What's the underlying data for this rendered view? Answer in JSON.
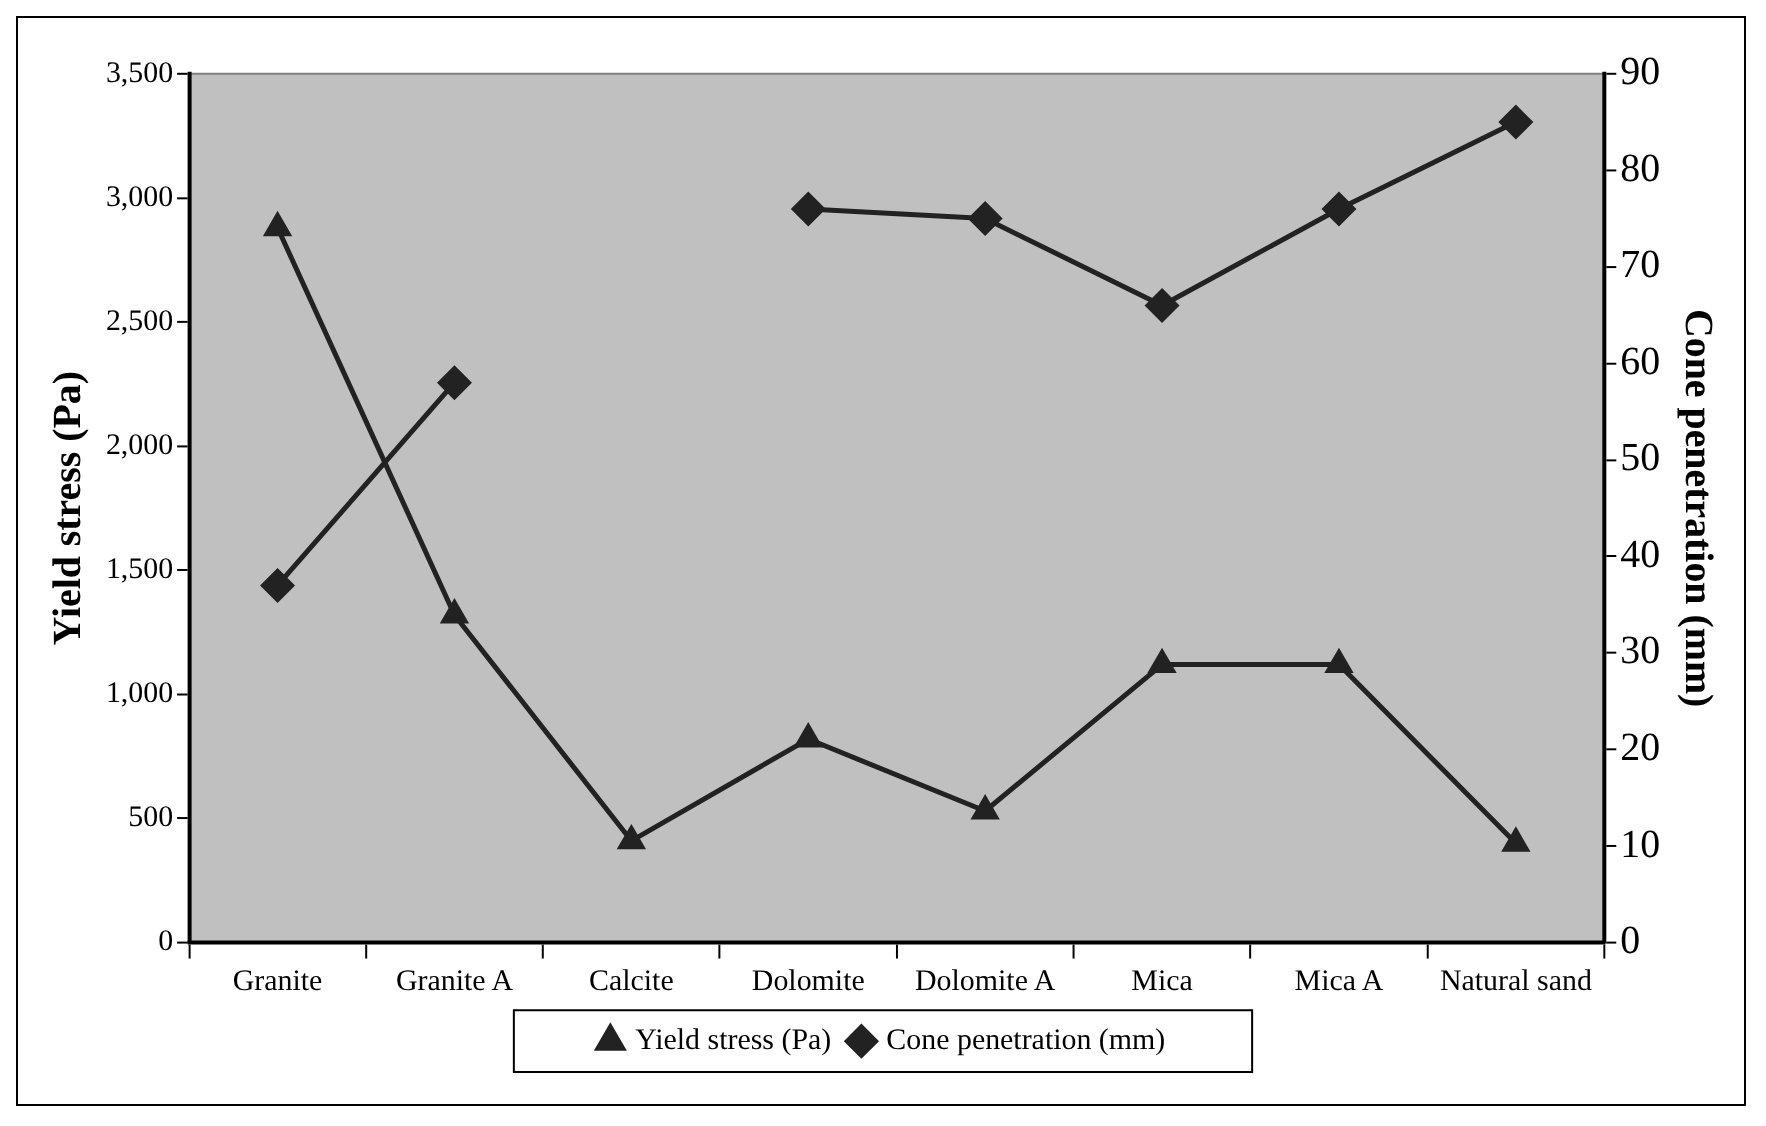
{
  "chart_data": {
    "type": "line",
    "xlabel": null,
    "ylabel": "Yield stress (Pa)",
    "y2label": "Cone penetration (mm)",
    "categories": [
      "Granite",
      "Granite A",
      "Calcite",
      "Dolomite",
      "Dolomite A",
      "Mica",
      "Mica A",
      "Natural sand"
    ],
    "series": [
      {
        "name": "Yield stress (Pa)",
        "color": "#222222",
        "marker": "triangle",
        "values": [
          2880,
          1320,
          410,
          820,
          530,
          1120,
          1120,
          400
        ]
      },
      {
        "name": "Cone penetration (mm)",
        "color": "#222222",
        "marker": "diamond",
        "axis": "y2",
        "values": [
          37,
          58,
          null,
          76,
          75,
          66,
          76,
          85
        ]
      }
    ],
    "ylim": [
      0,
      3500
    ],
    "yticks": [
      0,
      500,
      {
        "value": 1000,
        "label": "1,000"
      },
      {
        "value": 1500,
        "label": "1,500"
      },
      {
        "value": 2000,
        "label": "2,000"
      },
      {
        "value": 2500,
        "label": "2,500"
      },
      {
        "value": 3000,
        "label": "3,000"
      },
      {
        "value": 3500,
        "label": "3,500"
      }
    ],
    "y2lim": [
      0,
      90
    ],
    "y2ticks": [
      0,
      10,
      20,
      30,
      40,
      50,
      60,
      70,
      80,
      90
    ],
    "grid": false,
    "legend": "bottom",
    "line_style": "solid"
  }
}
